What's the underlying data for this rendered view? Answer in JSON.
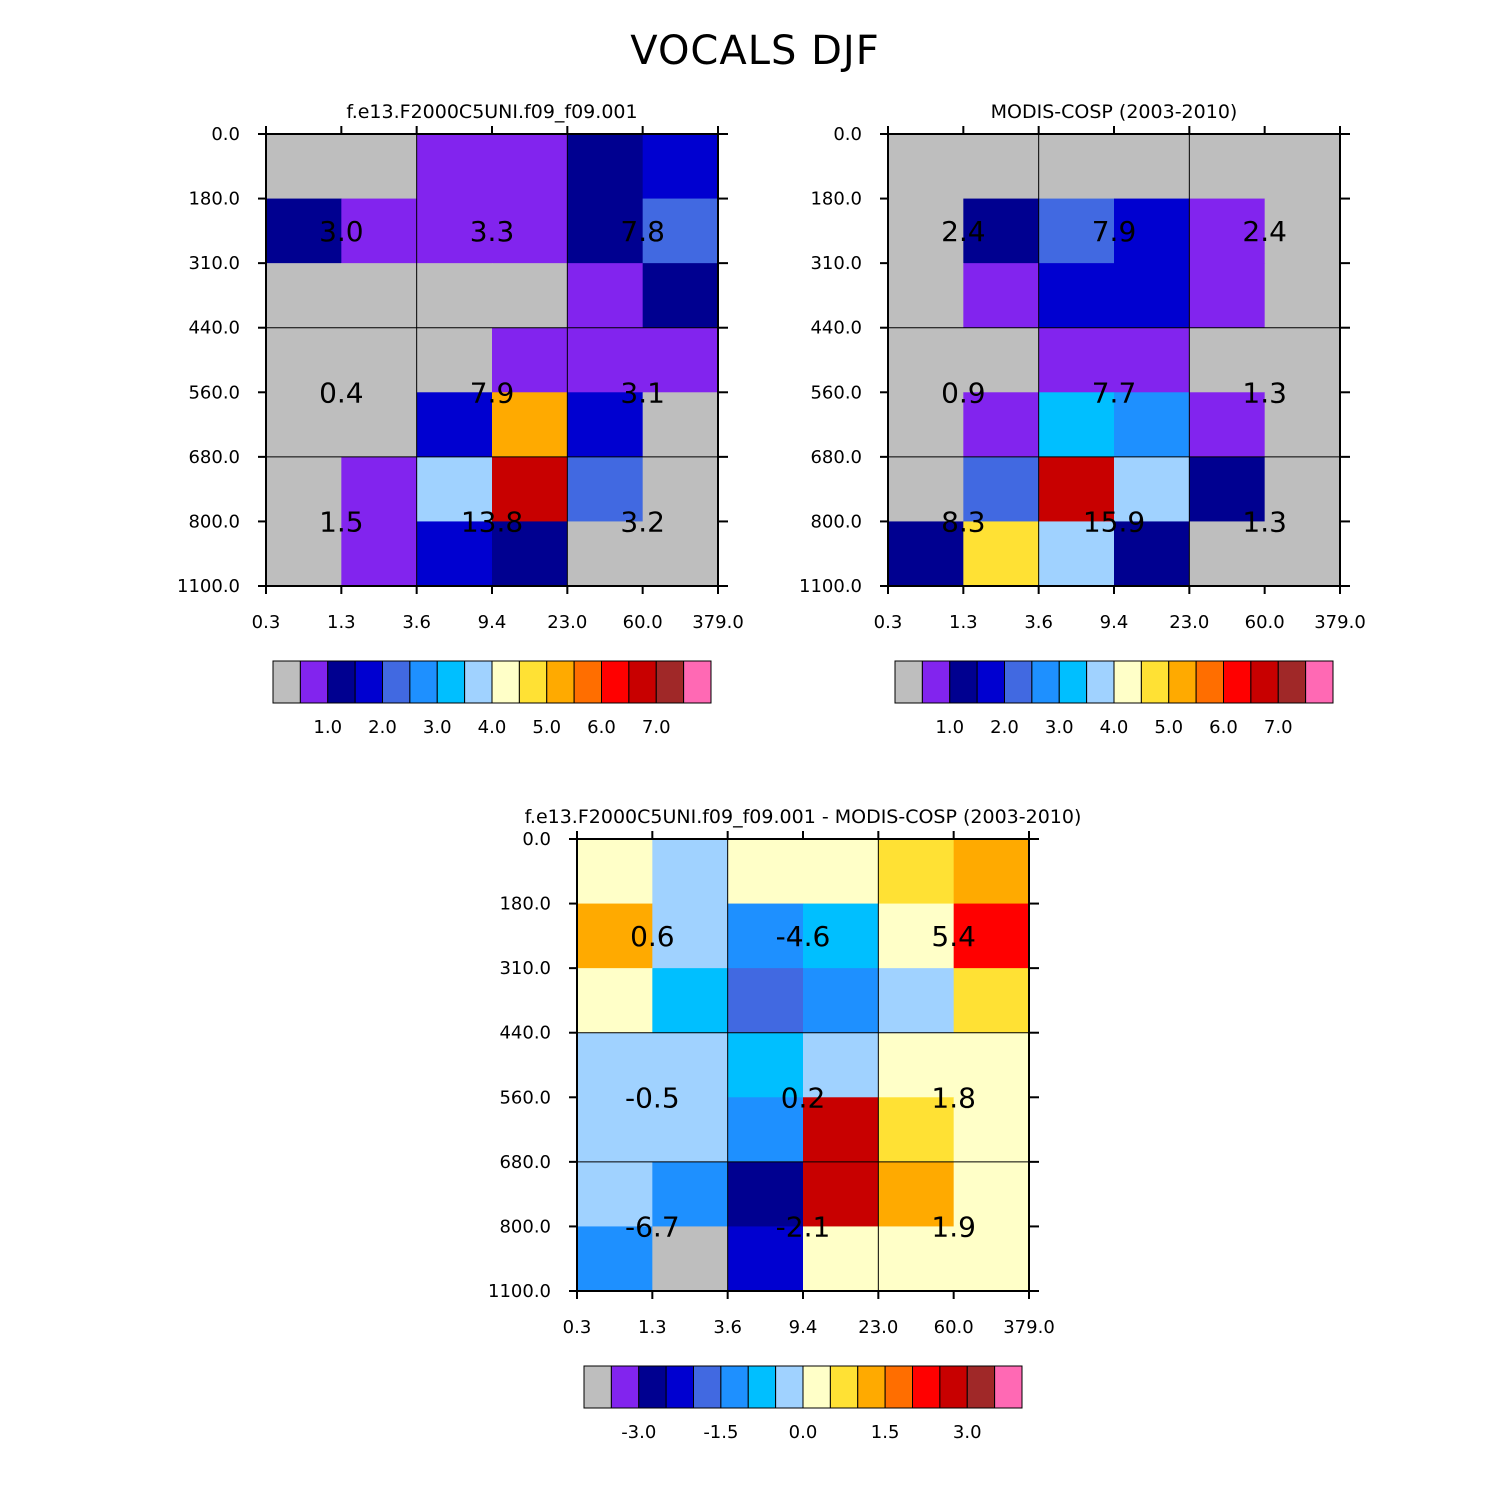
{
  "title": "VOCALS DJF",
  "x_ticks": [
    "0.3",
    "1.3",
    "3.6",
    "9.4",
    "23.0",
    "60.0",
    "379.0"
  ],
  "y_ticks": [
    "0.0",
    "180.0",
    "310.0",
    "440.0",
    "560.0",
    "680.0",
    "800.0",
    "1100.0"
  ],
  "palette": [
    "#bebebe",
    "#8224ee",
    "#000090",
    "#0000d0",
    "#4169e1",
    "#1e90ff",
    "#00bfff",
    "#a0d2ff",
    "#ffffc8",
    "#ffe134",
    "#ffaa00",
    "#ff6e00",
    "#ff0000",
    "#c80000",
    "#a02828",
    "#ff69b4"
  ],
  "chart_data": [
    {
      "type": "heatmap",
      "title": "f.e13.F2000C5UNI.f09_f09.001",
      "x_ticks": [
        "0.3",
        "1.3",
        "3.6",
        "9.4",
        "23.0",
        "60.0",
        "379.0"
      ],
      "y_ticks": [
        "0.0",
        "180.0",
        "310.0",
        "440.0",
        "560.0",
        "680.0",
        "800.0",
        "1100.0"
      ],
      "cell_color_index": [
        [
          0,
          0,
          1,
          1,
          2,
          3
        ],
        [
          2,
          1,
          1,
          1,
          2,
          4
        ],
        [
          0,
          0,
          0,
          0,
          1,
          2
        ],
        [
          0,
          0,
          0,
          1,
          1,
          1
        ],
        [
          0,
          0,
          3,
          10,
          3,
          0
        ],
        [
          0,
          1,
          7,
          13,
          4,
          0
        ],
        [
          0,
          1,
          3,
          2,
          0,
          0
        ]
      ],
      "block_labels": [
        [
          "3.0",
          "3.3",
          "7.8"
        ],
        [
          "0.4",
          "7.9",
          "3.1"
        ],
        [
          "1.5",
          "13.8",
          "3.2"
        ]
      ],
      "colorbar_labels": [
        "1.0",
        "2.0",
        "3.0",
        "4.0",
        "5.0",
        "6.0",
        "7.0"
      ]
    },
    {
      "type": "heatmap",
      "title": "MODIS-COSP (2003-2010)",
      "x_ticks": [
        "0.3",
        "1.3",
        "3.6",
        "9.4",
        "23.0",
        "60.0",
        "379.0"
      ],
      "y_ticks": [
        "0.0",
        "180.0",
        "310.0",
        "440.0",
        "560.0",
        "680.0",
        "800.0",
        "1100.0"
      ],
      "cell_color_index": [
        [
          0,
          0,
          0,
          0,
          0,
          0
        ],
        [
          0,
          2,
          4,
          3,
          1,
          0
        ],
        [
          0,
          1,
          3,
          3,
          1,
          0
        ],
        [
          0,
          0,
          1,
          1,
          0,
          0
        ],
        [
          0,
          1,
          6,
          5,
          1,
          0
        ],
        [
          0,
          4,
          13,
          7,
          2,
          0
        ],
        [
          2,
          9,
          7,
          2,
          0,
          0
        ]
      ],
      "block_labels": [
        [
          "2.4",
          "7.9",
          "2.4"
        ],
        [
          "0.9",
          "7.7",
          "1.3"
        ],
        [
          "8.3",
          "15.9",
          "1.3"
        ]
      ],
      "colorbar_labels": [
        "1.0",
        "2.0",
        "3.0",
        "4.0",
        "5.0",
        "6.0",
        "7.0"
      ]
    },
    {
      "type": "heatmap",
      "title": "f.e13.F2000C5UNI.f09_f09.001 - MODIS-COSP (2003-2010)",
      "x_ticks": [
        "0.3",
        "1.3",
        "3.6",
        "9.4",
        "23.0",
        "60.0",
        "379.0"
      ],
      "y_ticks": [
        "0.0",
        "180.0",
        "310.0",
        "440.0",
        "560.0",
        "680.0",
        "800.0",
        "1100.0"
      ],
      "cell_color_index": [
        [
          8,
          7,
          8,
          8,
          9,
          10
        ],
        [
          10,
          7,
          5,
          6,
          8,
          12
        ],
        [
          8,
          6,
          4,
          5,
          7,
          9
        ],
        [
          7,
          7,
          6,
          7,
          8,
          8
        ],
        [
          7,
          7,
          5,
          13,
          9,
          8
        ],
        [
          7,
          5,
          2,
          13,
          10,
          8
        ],
        [
          5,
          0,
          3,
          8,
          8,
          8
        ]
      ],
      "block_labels": [
        [
          "0.6",
          "-4.6",
          "5.4"
        ],
        [
          "-0.5",
          "0.2",
          "1.8"
        ],
        [
          "-6.7",
          "-2.1",
          "1.9"
        ]
      ],
      "colorbar_labels": [
        "-3.0",
        "-1.5",
        "0.0",
        "1.5",
        "3.0"
      ]
    }
  ]
}
